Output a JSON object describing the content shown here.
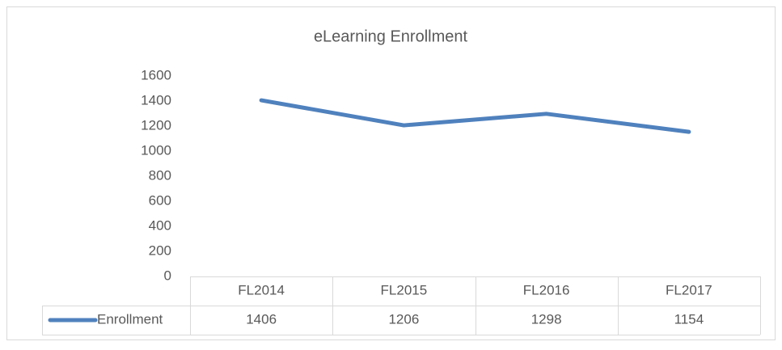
{
  "chart_data": {
    "type": "line",
    "title": "eLearning Enrollment",
    "categories": [
      "FL2014",
      "FL2015",
      "FL2016",
      "FL2017"
    ],
    "series": [
      {
        "name": "Enrollment",
        "color": "#4f81bd",
        "values": [
          1406,
          1206,
          1298,
          1154
        ]
      }
    ],
    "ylim": [
      0,
      1600
    ],
    "yticks": [
      0,
      200,
      400,
      600,
      800,
      1000,
      1200,
      1400,
      1600
    ],
    "data_table": true
  }
}
